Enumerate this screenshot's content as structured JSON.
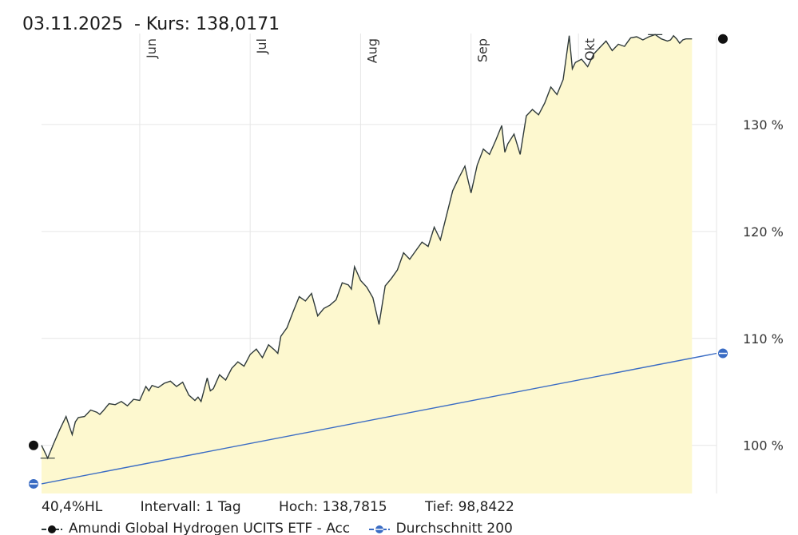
{
  "header": {
    "date": "03.11.2025",
    "price_label": "- Kurs:",
    "price": "138,0171"
  },
  "stats": {
    "performance": "40,4%HL",
    "interval": "Intervall: 1 Tag",
    "high": "Hoch: 138,7815",
    "low": "Tief: 98,8422"
  },
  "legend": {
    "series1": "Amundi Global Hydrogen UCITS ETF - Acc",
    "series2": "Durchschnitt 200"
  },
  "colors": {
    "price_line": "#2f3a3a",
    "area_fill": "#fdf8cf",
    "sma_line": "#3a6cc4",
    "grid": "#e6e6e6",
    "marker": "#111111"
  },
  "chart_data": {
    "type": "line",
    "title": "",
    "xlabel": "",
    "ylabel": "",
    "ylim": [
      95.5,
      138.5
    ],
    "y_ticks": [
      {
        "value": 100,
        "label": "100 %"
      },
      {
        "value": 110,
        "label": "110 %"
      },
      {
        "value": 120,
        "label": "120 %"
      },
      {
        "value": 130,
        "label": "130 %"
      }
    ],
    "x_domain": [
      0,
      220
    ],
    "x_ticks": [
      {
        "x": 32,
        "label": "Jun"
      },
      {
        "x": 68,
        "label": "Jul"
      },
      {
        "x": 104,
        "label": "Aug"
      },
      {
        "x": 140,
        "label": "Sep"
      },
      {
        "x": 175,
        "label": "Okt"
      }
    ],
    "grid": true,
    "series": [
      {
        "name": "Amundi Global Hydrogen UCITS ETF - Acc",
        "x": [
          0,
          2,
          4,
          6,
          8,
          10,
          11,
          12,
          14,
          16,
          18,
          19,
          20,
          22,
          24,
          26,
          28,
          30,
          32,
          34,
          35,
          36,
          38,
          40,
          42,
          44,
          46,
          48,
          50,
          51,
          52,
          54,
          55,
          56,
          58,
          60,
          62,
          64,
          66,
          68,
          70,
          72,
          74,
          76,
          77,
          78,
          80,
          82,
          84,
          86,
          88,
          90,
          92,
          94,
          96,
          98,
          100,
          101,
          102,
          104,
          106,
          108,
          110,
          112,
          114,
          116,
          118,
          120,
          122,
          124,
          126,
          128,
          130,
          132,
          134,
          136,
          138,
          139,
          140,
          142,
          144,
          146,
          148,
          150,
          151,
          152,
          154,
          156,
          158,
          160,
          162,
          164,
          166,
          168,
          170,
          172,
          173,
          174,
          176,
          178,
          180,
          182,
          184,
          186,
          188,
          190,
          191,
          192,
          194,
          196,
          198,
          200,
          202,
          204,
          205,
          206,
          207,
          208,
          209,
          210,
          212
        ],
        "values": [
          100.0,
          98.8,
          100.2,
          101.5,
          102.7,
          101.0,
          102.2,
          102.6,
          102.7,
          103.3,
          103.1,
          102.9,
          103.2,
          103.9,
          103.8,
          104.1,
          103.7,
          104.3,
          104.2,
          105.5,
          105.1,
          105.6,
          105.4,
          105.8,
          106.0,
          105.5,
          105.9,
          104.7,
          104.2,
          104.5,
          104.1,
          106.3,
          105.1,
          105.3,
          106.6,
          106.1,
          107.2,
          107.8,
          107.4,
          108.5,
          109.0,
          108.2,
          109.4,
          108.9,
          108.6,
          110.2,
          111.0,
          112.5,
          113.9,
          113.5,
          114.2,
          112.1,
          112.8,
          113.1,
          113.6,
          115.2,
          115.0,
          114.6,
          116.7,
          115.4,
          114.8,
          113.8,
          111.3,
          114.9,
          115.6,
          116.4,
          118.0,
          117.4,
          118.2,
          119.0,
          118.6,
          120.4,
          119.2,
          121.5,
          123.8,
          125.0,
          126.1,
          124.8,
          123.6,
          126.2,
          127.7,
          127.2,
          128.5,
          129.9,
          127.4,
          128.2,
          129.1,
          127.2,
          130.8,
          131.4,
          130.9,
          132.0,
          133.5,
          132.8,
          134.2,
          138.3,
          135.2,
          135.8,
          136.1,
          135.4,
          136.6,
          137.2,
          137.8,
          136.9,
          137.5,
          137.3,
          137.7,
          138.1,
          138.2,
          137.9,
          138.2,
          138.4,
          138.0,
          137.8,
          137.9,
          138.3,
          138.0,
          137.6,
          137.9,
          138.0,
          138.0
        ]
      },
      {
        "name": "Durchschnitt 200",
        "x": [
          0,
          220
        ],
        "values": [
          96.4,
          108.6
        ]
      }
    ]
  }
}
